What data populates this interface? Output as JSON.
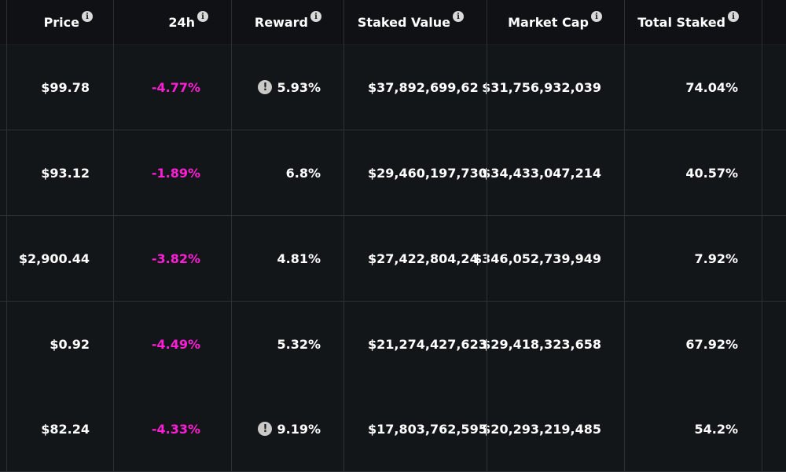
{
  "headers": {
    "price": "Price",
    "change_24h": "24h",
    "reward": "Reward",
    "staked_value": "Staked Value",
    "market_cap": "Market Cap",
    "total_staked": "Total Staked",
    "info_glyph": "i"
  },
  "warning_glyph": "!",
  "colors": {
    "negative": "#ff1fd6",
    "background": "#0d0f12",
    "row_background": "#131619"
  },
  "rows": [
    {
      "price": "$99.78",
      "change_24h": "-4.77%",
      "reward": "5.93%",
      "reward_warning": true,
      "staked_value": "$37,892,699,62",
      "market_cap": "$31,756,932,039",
      "total_staked": "74.04%"
    },
    {
      "price": "$93.12",
      "change_24h": "-1.89%",
      "reward": "6.8%",
      "reward_warning": false,
      "staked_value": "$29,460,197,730",
      "market_cap": "$34,433,047,214",
      "total_staked": "40.57%"
    },
    {
      "price": "$2,900.44",
      "change_24h": "-3.82%",
      "reward": "4.81%",
      "reward_warning": false,
      "staked_value": "$27,422,804,24",
      "market_cap": "$346,052,739,949",
      "total_staked": "7.92%"
    },
    {
      "price": "$0.92",
      "change_24h": "-4.49%",
      "reward": "5.32%",
      "reward_warning": false,
      "staked_value": "$21,274,427,623",
      "market_cap": "$29,418,323,658",
      "total_staked": "67.92%"
    },
    {
      "price": "$82.24",
      "change_24h": "-4.33%",
      "reward": "9.19%",
      "reward_warning": true,
      "staked_value": "$17,803,762,595",
      "market_cap": "$20,293,219,485",
      "total_staked": "54.2%"
    }
  ]
}
